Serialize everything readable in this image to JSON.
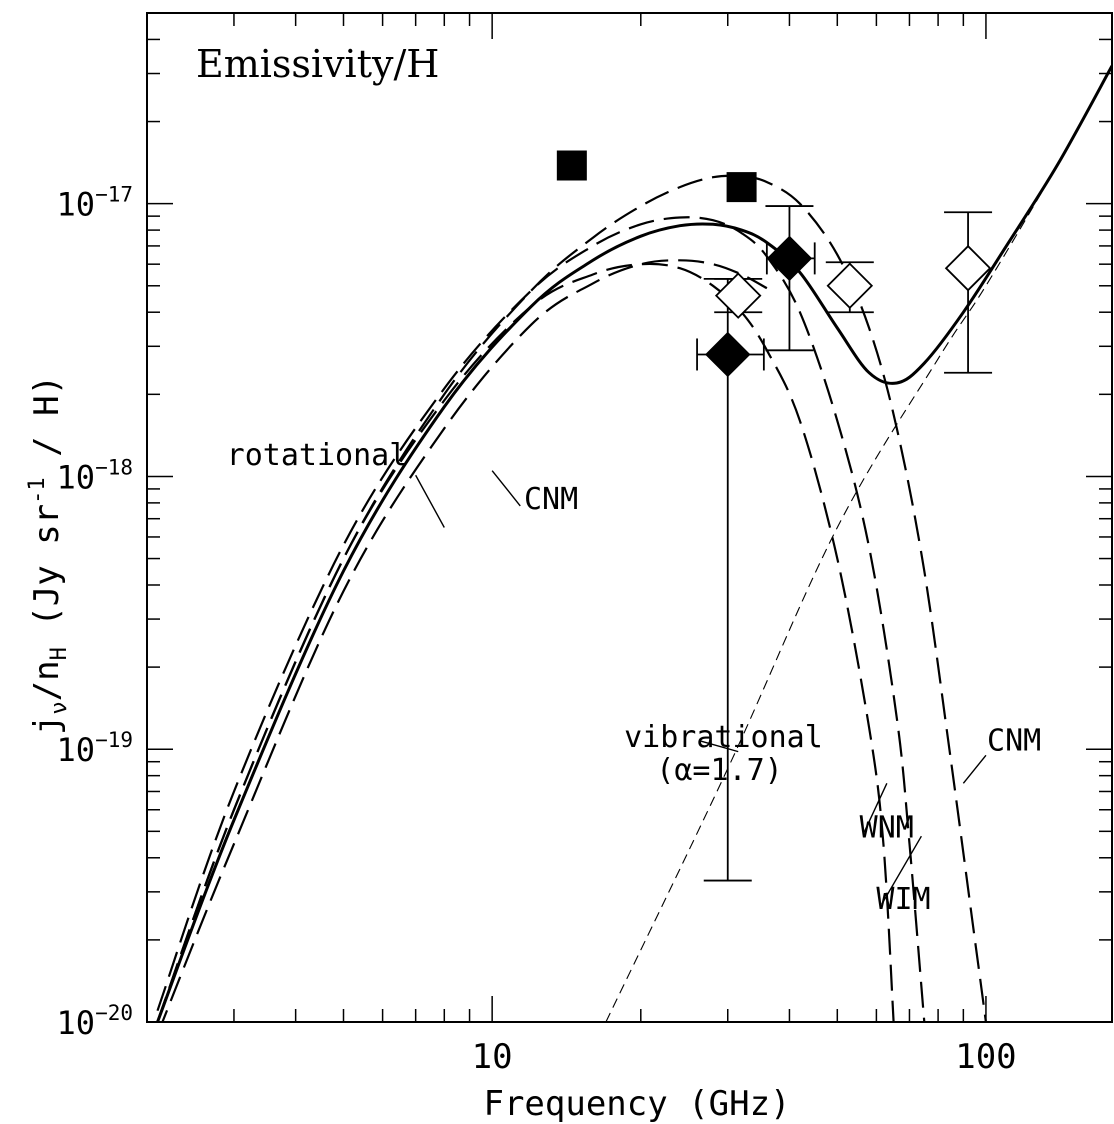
{
  "chart_data": {
    "type": "line",
    "title": "Emissivity/H",
    "xlabel": "Frequency (GHz)",
    "ylabel_parts": {
      "j": "j",
      "nu": "ν",
      "slash": "/n",
      "H": "H",
      "units": " (Jy sr",
      "exp": "-1",
      "tail": " / H)"
    },
    "xscale": "log",
    "yscale": "log",
    "xlim": [
      2,
      180
    ],
    "ylim": [
      1e-20,
      5e-17
    ],
    "x_ticks": [
      {
        "value": 10,
        "label": "10"
      },
      {
        "value": 100,
        "label": "100"
      }
    ],
    "y_ticks": [
      {
        "value": 1e-17,
        "base": "10",
        "exp": "−17"
      },
      {
        "value": 1e-18,
        "base": "10",
        "exp": "−18"
      },
      {
        "value": 1e-19,
        "base": "10",
        "exp": "−19"
      },
      {
        "value": 1e-20,
        "base": "10",
        "exp": "−20"
      }
    ],
    "series": [
      {
        "style": "solid-thick",
        "x": [
          2.1,
          3,
          5,
          8,
          12,
          16,
          20,
          24,
          28,
          32,
          36,
          42,
          50,
          58,
          66,
          75,
          90,
          110,
          140,
          180
        ],
        "y": [
          1e-20,
          5.5e-20,
          4.5e-19,
          1.8e-18,
          4.2e-18,
          6.2e-18,
          7.6e-18,
          8.3e-18,
          8.4e-18,
          8e-18,
          7.2e-18,
          5.6e-18,
          3.5e-18,
          2.4e-18,
          2.2e-18,
          2.6e-18,
          4e-18,
          7e-18,
          1.4e-17,
          3.2e-17
        ]
      },
      {
        "style": "dashed",
        "x": [
          2.1,
          3,
          5,
          8,
          12,
          16,
          20,
          24,
          28,
          32,
          36,
          42,
          50,
          58,
          66,
          75,
          85,
          95,
          100
        ],
        "y": [
          1e-20,
          6e-20,
          5e-19,
          2e-18,
          4.8e-18,
          7.5e-18,
          9.8e-18,
          1.15e-17,
          1.25e-17,
          1.26e-17,
          1.2e-17,
          1e-17,
          6.5e-18,
          3.5e-18,
          1.5e-18,
          4.5e-19,
          9e-20,
          2e-20,
          1e-20
        ]
      },
      {
        "style": "dashed",
        "x": [
          2.1,
          3,
          5,
          8,
          12,
          16,
          20,
          24,
          28,
          32,
          36,
          42,
          50,
          58,
          66,
          70,
          75
        ],
        "y": [
          1.1e-20,
          7e-20,
          5.6e-19,
          2.1e-18,
          4.8e-18,
          7e-18,
          8.4e-18,
          8.9e-18,
          8.7e-18,
          7.8e-18,
          6.4e-18,
          4e-18,
          1.6e-18,
          5.5e-19,
          1.3e-19,
          4.5e-20,
          1e-20
        ]
      },
      {
        "style": "dashed",
        "x": [
          2.1,
          3,
          5,
          8,
          12,
          16,
          20,
          24,
          28,
          32,
          36,
          42,
          50,
          58,
          62,
          65
        ],
        "y": [
          1e-20,
          6e-20,
          5e-19,
          1.9e-18,
          4.2e-18,
          5.5e-18,
          6e-18,
          5.8e-18,
          5e-18,
          4e-18,
          2.9e-18,
          1.6e-18,
          5e-19,
          1.2e-19,
          4.5e-20,
          1e-20
        ]
      },
      {
        "style": "dashed",
        "x": [
          2.1,
          3,
          5,
          8,
          12,
          16,
          20,
          24,
          28,
          32,
          36
        ],
        "y": [
          9e-21,
          4.5e-20,
          3.8e-19,
          1.5e-18,
          3.6e-18,
          5.1e-18,
          6e-18,
          6.2e-18,
          6e-18,
          5.5e-18,
          4.9e-18
        ]
      },
      {
        "style": "thin-dashed",
        "x": [
          17,
          30,
          50,
          80,
          100,
          140,
          180
        ],
        "y": [
          1e-20,
          8.5e-20,
          6.5e-19,
          2.7e-18,
          5e-18,
          1.4e-17,
          3.2e-17
        ]
      }
    ],
    "points": [
      {
        "marker": "square-filled",
        "x": 14.5,
        "y": 1.38e-17
      },
      {
        "marker": "square-filled",
        "x": 32,
        "y": 1.15e-17
      },
      {
        "marker": "diamond-filled",
        "x": 30,
        "y": 2.8e-18,
        "yerr": [
          3.3e-20,
          5.3e-18
        ],
        "xerr": [
          26,
          35.5
        ]
      },
      {
        "marker": "diamond-filled",
        "x": 40,
        "y": 6.3e-18,
        "yerr": [
          2.9e-18,
          9.8e-18
        ],
        "xerr": [
          36,
          45
        ]
      },
      {
        "marker": "diamond-open",
        "x": 31.5,
        "y": 4.6e-18,
        "yerr": [
          4e-18,
          5.3e-18
        ]
      },
      {
        "marker": "diamond-open",
        "x": 53,
        "y": 5e-18,
        "yerr": [
          4e-18,
          6.1e-18
        ]
      },
      {
        "marker": "diamond-open",
        "x": 92,
        "y": 5.8e-18,
        "yerr": [
          2.4e-18,
          9.3e-18
        ]
      }
    ],
    "annotations": [
      {
        "text": "rotational",
        "x": 2.9,
        "y": 1.1e-18,
        "lx1": 7.0,
        "ly1": 1.01e-18,
        "lx2": 8.0,
        "ly2": 6.5e-19
      },
      {
        "text": "CNM",
        "x": 11.6,
        "y": 7.6e-19,
        "lx1": 11.4,
        "ly1": 7.8e-19,
        "lx2": 10.0,
        "ly2": 1.05e-18
      },
      {
        "text": "vibrational",
        "x": 18.5,
        "y": 1.02e-19,
        "lx1": 26.5,
        "ly1": 1.07e-19,
        "lx2": 31.5,
        "ly2": 9.8e-20
      },
      {
        "text": "(α=1.7)",
        "x": 21.5,
        "y": 7.7e-20,
        "lx1": null,
        "ly1": null,
        "lx2": null,
        "ly2": null
      },
      {
        "text": "CNM",
        "x": 100.5,
        "y": 9.9e-20,
        "lx1": 100.0,
        "ly1": 9.5e-20,
        "lx2": 90.0,
        "ly2": 7.5e-20
      },
      {
        "text": "WNM",
        "x": 55.5,
        "y": 4.75e-20,
        "lx1": 56.5,
        "ly1": 4.9e-20,
        "lx2": 63.0,
        "ly2": 7.5e-20
      },
      {
        "text": "WIM",
        "x": 60.0,
        "y": 2.6e-20,
        "lx1": 61.5,
        "ly1": 2.7e-20,
        "lx2": 74.0,
        "ly2": 4.8e-20
      }
    ]
  }
}
